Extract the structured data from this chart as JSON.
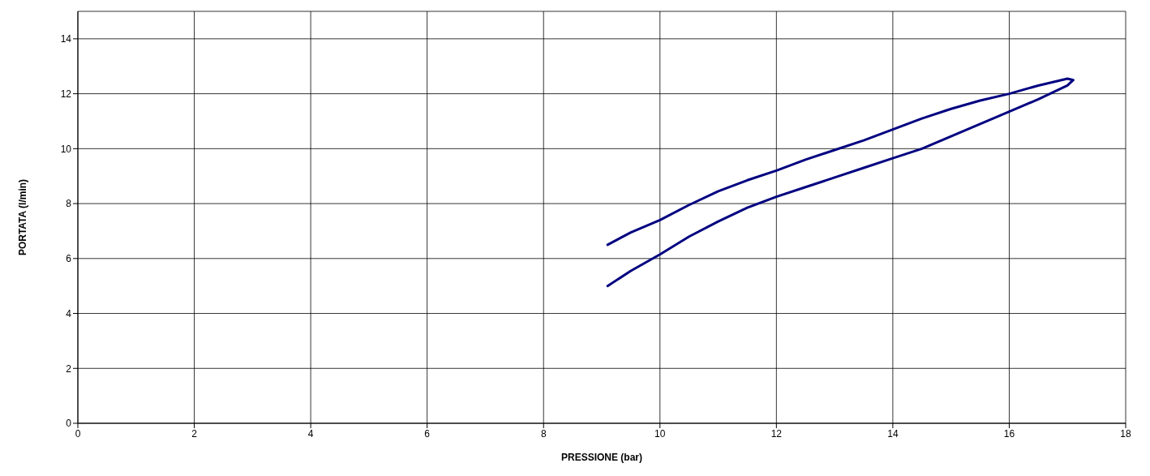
{
  "chart_data": {
    "type": "line",
    "xlabel": "PRESSIONE (bar)",
    "ylabel": "PORTATA (l/min)",
    "xlim": [
      0,
      18
    ],
    "xticks": [
      0,
      2,
      4,
      6,
      8,
      10,
      12,
      14,
      16,
      18
    ],
    "ylim": [
      0,
      15
    ],
    "yticks": [
      0,
      2,
      4,
      6,
      8,
      10,
      12,
      14
    ],
    "grid": true,
    "marker": "none",
    "line_style": "solid",
    "series": [
      {
        "color": "#000080",
        "x": [
          9.1,
          9.5,
          10,
          10.5,
          11,
          11.5,
          12,
          12.5,
          13,
          13.5,
          14,
          14.5,
          15,
          15.5,
          16,
          16.5,
          17,
          17.1,
          17.0,
          16.5,
          16,
          15.5,
          15,
          14.5,
          14,
          13.5,
          13,
          12.5,
          12,
          11.5,
          11,
          10.5,
          10,
          9.5,
          9.1
        ],
        "values": [
          5.0,
          5.55,
          6.15,
          6.8,
          7.35,
          7.85,
          8.25,
          8.6,
          8.95,
          9.3,
          9.65,
          10.0,
          10.45,
          10.9,
          11.35,
          11.8,
          12.3,
          12.5,
          12.55,
          12.3,
          12.0,
          11.75,
          11.45,
          11.1,
          10.7,
          10.3,
          9.95,
          9.6,
          9.2,
          8.85,
          8.45,
          7.95,
          7.4,
          6.95,
          6.5
        ]
      }
    ]
  }
}
